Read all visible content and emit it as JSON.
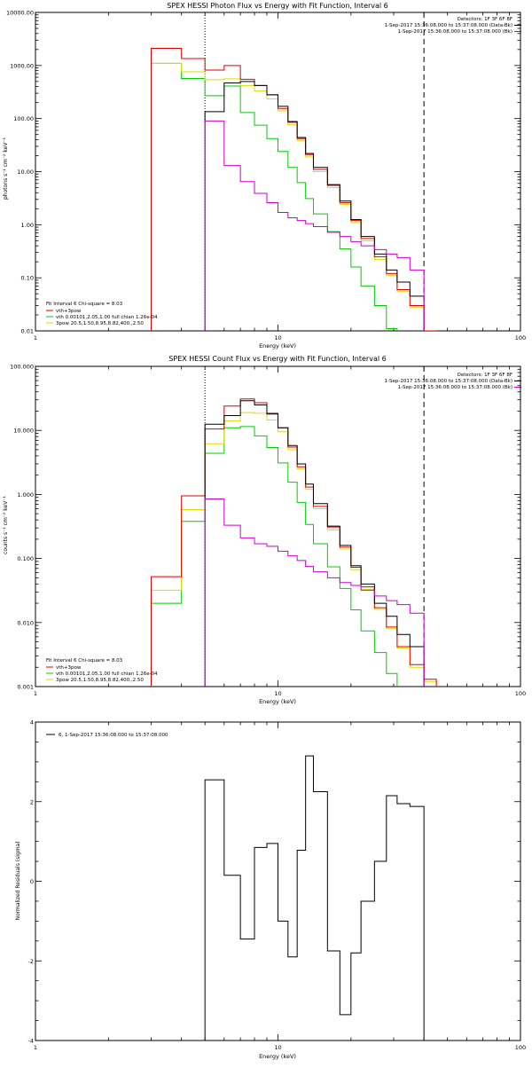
{
  "panels": [
    {
      "title": "SPEX HESSI Photon Flux vs Energy with Fit Function, Interval 6",
      "xlabel": "Energy (keV)",
      "ylabel": "photons s⁻¹ cm⁻² keV⁻¹",
      "legend_tr": [
        "Detectors: 1F 3F 6F 8F",
        "1-Sep-2017 15:36:08.000 to 15:37:08.000 (Data-Bk)",
        "1-Sep-2017 15:36:08.000 to 15:37:08.000 (Bk)"
      ],
      "legend_bl": [
        "Fit Interval  6   Chi-square = 8.03",
        "vth+3pow",
        "vth 0.00101,2.05,1.00  full chian 1.26e-04",
        "3pow 20.5,1.50,8.95,8.82,400.,2.50"
      ]
    },
    {
      "title": "SPEX HESSI Count Flux vs Energy with Fit Function, Interval 6",
      "xlabel": "Energy (keV)",
      "ylabel": "counts s⁻¹ cm⁻² keV⁻¹",
      "legend_tr": [
        "Detectors: 1F 3F 6F 8F",
        "1-Sep-2017 15:36:08.000 to 15:37:08.000 (Data-Bk)",
        "1-Sep-2017 15:36:08.000 to 15:37:08.000 (Bk)"
      ],
      "legend_bl": [
        "Fit Interval  6   Chi-square = 8.03",
        "vth+3pow",
        "vth 0.00101,2.05,1.00  full chian 1.26e-04",
        "3pow 20.5,1.50,8.95,8.82,400.,2.50"
      ]
    },
    {
      "xlabel": "Energy (keV)",
      "ylabel": "Normalized Residuals (sigma)",
      "legend_tl": [
        "6,  1-Sep-2017 15:36:08.000 to 15:37:08.000"
      ]
    }
  ],
  "chart_data": [
    {
      "type": "line",
      "title": "SPEX HESSI Photon Flux vs Energy with Fit Function, Interval 6",
      "xlabel": "Energy (keV)",
      "ylabel": "photons s⁻¹ cm⁻² keV⁻¹",
      "xscale": "log",
      "yscale": "log",
      "xlim": [
        1,
        100
      ],
      "ylim": [
        0.01,
        10000
      ],
      "x_ticks": [
        "1",
        "10",
        "100"
      ],
      "y_ticks": [
        "0.01",
        "0.10",
        "1.00",
        "10.00",
        "100.00",
        "1000.00",
        "10000.00"
      ],
      "vlines": [
        {
          "x": 5,
          "style": "dotted"
        },
        {
          "x": 40,
          "style": "dashed"
        }
      ],
      "edges": [
        3,
        4,
        5,
        6,
        7,
        8,
        9,
        10,
        11,
        12,
        13,
        14,
        16,
        18,
        20,
        22,
        25,
        28,
        31,
        35,
        40,
        45
      ],
      "series": [
        {
          "name": "1-Sep-2017 15:36:08.000 to 15:37:08.000 (Data-Bk)",
          "color": "#000000",
          "values": [
            null,
            null,
            135,
            470,
            500,
            420,
            280,
            170,
            88,
            44,
            22,
            12,
            5.7,
            2.8,
            1.25,
            0.6,
            0.28,
            0.14,
            0.083,
            0.045,
            null
          ]
        },
        {
          "name": "1-Sep-2017 15:36:08.000 to 15:37:08.000 (Bk)",
          "color": "#cc00cc",
          "values": [
            null,
            null,
            90,
            13,
            6.5,
            3.9,
            2.6,
            1.7,
            1.35,
            1.2,
            1.05,
            0.92,
            0.72,
            0.6,
            0.48,
            0.4,
            0.34,
            0.28,
            0.24,
            0.14,
            null
          ]
        },
        {
          "name": "vth+3pow",
          "color": "#dd0000",
          "values": [
            2100,
            1350,
            820,
            1000,
            550,
            420,
            280,
            155,
            85,
            42,
            21,
            11,
            5.5,
            2.6,
            1.2,
            0.55,
            0.25,
            0.12,
            0.06,
            0.03,
            0.01
          ]
        },
        {
          "name": "vth 0.00101,2.05,1.00  full chian 1.26e-04",
          "color": "#00cc00",
          "values": [
            1100,
            570,
            270,
            410,
            130,
            75,
            42,
            24,
            12,
            6.2,
            3.1,
            1.6,
            0.74,
            0.35,
            0.16,
            0.07,
            0.03,
            0.011,
            0.0045,
            null,
            null
          ]
        },
        {
          "name": "3pow 20.5,1.50,8.95,8.82,400.,2.50",
          "color": "#dddd00",
          "values": [
            1100,
            760,
            540,
            560,
            420,
            330,
            235,
            140,
            76,
            38,
            19,
            10,
            5.0,
            2.4,
            1.1,
            0.5,
            0.22,
            0.11,
            0.055,
            0.028,
            0.01
          ]
        }
      ]
    },
    {
      "type": "line",
      "title": "SPEX HESSI Count Flux vs Energy with Fit Function, Interval 6",
      "xlabel": "Energy (keV)",
      "ylabel": "counts s⁻¹ cm⁻² keV⁻¹",
      "xscale": "log",
      "yscale": "log",
      "xlim": [
        1,
        100
      ],
      "ylim": [
        0.001,
        100
      ],
      "x_ticks": [
        "1",
        "10",
        "100"
      ],
      "y_ticks": [
        "0.001",
        "0.010",
        "0.100",
        "1.000",
        "10.000",
        "100.000"
      ],
      "vlines": [
        {
          "x": 5,
          "style": "dotted"
        },
        {
          "x": 40,
          "style": "dashed"
        }
      ],
      "edges": [
        3,
        4,
        5,
        6,
        7,
        8,
        9,
        10,
        11,
        12,
        13,
        14,
        16,
        18,
        20,
        22,
        25,
        28,
        31,
        35,
        40,
        45
      ],
      "series": [
        {
          "name": "1-Sep-2017 15:36:08.000 to 15:37:08.000 (Data-Bk)",
          "color": "#000000",
          "values": [
            null,
            null,
            12.5,
            17,
            29,
            25,
            18,
            11,
            5.8,
            3,
            1.45,
            0.72,
            0.32,
            0.16,
            0.077,
            0.04,
            0.02,
            0.0125,
            0.0065,
            0.0042,
            null
          ]
        },
        {
          "name": "1-Sep-2017 15:36:08.000 to 15:37:08.000 (Bk)",
          "color": "#cc00cc",
          "values": [
            null,
            null,
            0.85,
            0.33,
            0.21,
            0.17,
            0.155,
            0.13,
            0.11,
            0.093,
            0.075,
            0.062,
            0.05,
            0.042,
            0.038,
            0.032,
            0.026,
            0.022,
            0.019,
            0.014,
            null
          ]
        },
        {
          "name": "vth+3pow",
          "color": "#dd0000",
          "values": [
            0.052,
            0.95,
            10.5,
            24,
            31,
            27,
            18.5,
            11,
            5.5,
            2.7,
            1.3,
            0.65,
            0.31,
            0.15,
            0.073,
            0.036,
            0.017,
            0.0085,
            0.0042,
            0.0022,
            0.0013
          ]
        },
        {
          "name": "vth 0.00101,2.05,1.00  full chian 1.26e-04",
          "color": "#00cc00",
          "values": [
            0.02,
            0.38,
            4.4,
            11,
            11.5,
            8.2,
            5.4,
            3.1,
            1.55,
            0.75,
            0.34,
            0.17,
            0.074,
            0.034,
            0.0158,
            0.0074,
            0.0034,
            0.0016,
            null,
            null,
            null
          ]
        },
        {
          "name": "3pow 20.5,1.50,8.95,8.82,400.,2.50",
          "color": "#dddd00",
          "values": [
            0.032,
            0.58,
            6.2,
            14,
            19,
            18.5,
            14.5,
            9.5,
            5.0,
            2.5,
            1.2,
            0.6,
            0.28,
            0.14,
            0.067,
            0.033,
            0.016,
            0.008,
            0.004,
            0.002,
            0.0012
          ]
        }
      ]
    },
    {
      "type": "line",
      "xlabel": "Energy (keV)",
      "ylabel": "Normalized Residuals (sigma)",
      "xscale": "log",
      "yscale": "linear",
      "xlim": [
        1,
        100
      ],
      "ylim": [
        -4,
        4
      ],
      "x_ticks": [
        "1",
        "10",
        "100"
      ],
      "y_ticks": [
        "-4",
        "-2",
        "0",
        "2",
        "4"
      ],
      "edges": [
        5,
        6,
        7,
        8,
        9,
        10,
        11,
        12,
        13,
        14,
        16,
        18,
        20,
        22,
        25,
        28,
        31,
        35,
        40
      ],
      "series": [
        {
          "name": "6,  1-Sep-2017 15:36:08.000 to 15:37:08.000",
          "color": "#000000",
          "values": [
            2.55,
            0.15,
            -1.45,
            0.85,
            0.95,
            -1.0,
            -1.9,
            0.78,
            3.15,
            2.25,
            -1.75,
            -3.35,
            -1.8,
            -0.5,
            0.5,
            2.15,
            1.95,
            1.88
          ]
        }
      ]
    }
  ]
}
